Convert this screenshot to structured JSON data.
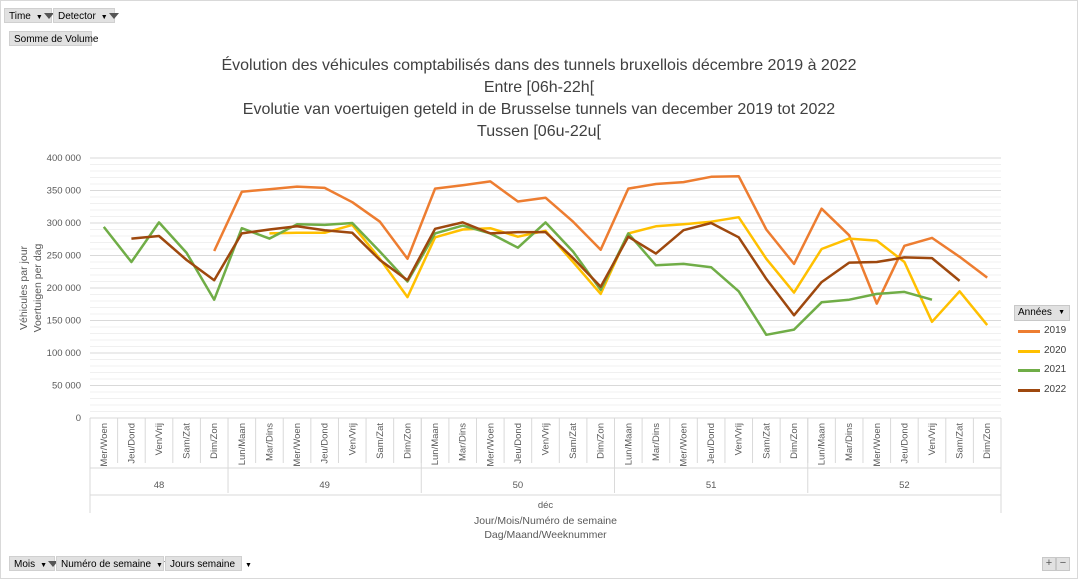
{
  "filters_top": [
    {
      "label": "Time"
    },
    {
      "label": "Detector"
    }
  ],
  "value_field": "Somme de Volume",
  "filters_bottom": [
    {
      "label": "Mois"
    },
    {
      "label": "Numéro de semaine"
    },
    {
      "label": "Jours semaine"
    }
  ],
  "zoom_buttons": {
    "plus": "+",
    "minus": "−"
  },
  "legend_title": "Années",
  "chart_data": {
    "type": "line",
    "title": [
      "Évolution des véhicules comptabilisés dans des tunnels bruxellois décembre 2019 à 2022",
      "Entre [06h-22h[",
      "Evolutie van voertuigen geteld in de Brusselse tunnels van december 2019 tot 2022",
      "Tussen [06u-22u["
    ],
    "ylabel": [
      "Véhicules par jour",
      "Voertuigen per dag"
    ],
    "xlabel": [
      "Jour/Mois/Numéro de semaine",
      "Dag/Maand/Weeknummer"
    ],
    "month_label": "déc",
    "weeks": [
      {
        "label": "48",
        "days": [
          "Mer/Woen",
          "Jeu/Dond",
          "Ven/Vrij",
          "Sam/Zat",
          "Dim/Zon"
        ]
      },
      {
        "label": "49",
        "days": [
          "Lun/Maan",
          "Mar/Dins",
          "Mer/Woen",
          "Jeu/Dond",
          "Ven/Vrij",
          "Sam/Zat",
          "Dim/Zon"
        ]
      },
      {
        "label": "50",
        "days": [
          "Lun/Maan",
          "Mar/Dins",
          "Mer/Woen",
          "Jeu/Dond",
          "Ven/Vrij",
          "Sam/Zat",
          "Dim/Zon"
        ]
      },
      {
        "label": "51",
        "days": [
          "Lun/Maan",
          "Mar/Dins",
          "Mer/Woen",
          "Jeu/Dond",
          "Ven/Vrij",
          "Sam/Zat",
          "Dim/Zon"
        ]
      },
      {
        "label": "52",
        "days": [
          "Lun/Maan",
          "Mar/Dins",
          "Mer/Woen",
          "Jeu/Dond",
          "Ven/Vrij",
          "Sam/Zat",
          "Dim/Zon"
        ]
      }
    ],
    "ylim": [
      0,
      400000
    ],
    "yticks": [
      0,
      50000,
      100000,
      150000,
      200000,
      250000,
      300000,
      350000,
      400000
    ],
    "ytick_labels": [
      "0",
      "50 000",
      "100 000",
      "150 000",
      "200 000",
      "250 000",
      "300 000",
      "350 000",
      "400 000"
    ],
    "grid": true,
    "legend_position": "right",
    "series": [
      {
        "name": "2019",
        "color": "#ED7D31",
        "values": [
          null,
          null,
          null,
          null,
          257000,
          348000,
          352000,
          356000,
          354000,
          332000,
          302000,
          245000,
          353000,
          358000,
          364000,
          333000,
          339000,
          302000,
          259000,
          353000,
          360000,
          363000,
          371000,
          372000,
          290000,
          237000,
          322000,
          281000,
          176000,
          265000,
          277000,
          248000,
          216000
        ]
      },
      {
        "name": "2020",
        "color": "#FFC000",
        "values": [
          null,
          null,
          null,
          null,
          null,
          null,
          284000,
          285000,
          285000,
          297000,
          245000,
          186000,
          278000,
          290000,
          292000,
          279000,
          288000,
          240000,
          191000,
          284000,
          295000,
          298000,
          302000,
          309000,
          245000,
          193000,
          260000,
          276000,
          273000,
          240000,
          148000,
          195000,
          143000
        ]
      },
      {
        "name": "2021",
        "color": "#70AD47",
        "values": [
          294000,
          240000,
          301000,
          254000,
          182000,
          292000,
          276000,
          298000,
          297000,
          300000,
          256000,
          210000,
          284000,
          296000,
          284000,
          262000,
          301000,
          256000,
          197000,
          284000,
          235000,
          237000,
          232000,
          195000,
          128000,
          136000,
          178000,
          182000,
          191000,
          194000,
          182000,
          null,
          null
        ]
      },
      {
        "name": "2022",
        "color": "#9E480E",
        "values": [
          null,
          276000,
          280000,
          243000,
          212000,
          284000,
          290000,
          295000,
          289000,
          285000,
          243000,
          212000,
          291000,
          301000,
          284000,
          286000,
          286000,
          246000,
          202000,
          279000,
          253000,
          289000,
          300000,
          278000,
          214000,
          158000,
          209000,
          239000,
          240000,
          247000,
          246000,
          211000,
          null
        ]
      }
    ]
  }
}
